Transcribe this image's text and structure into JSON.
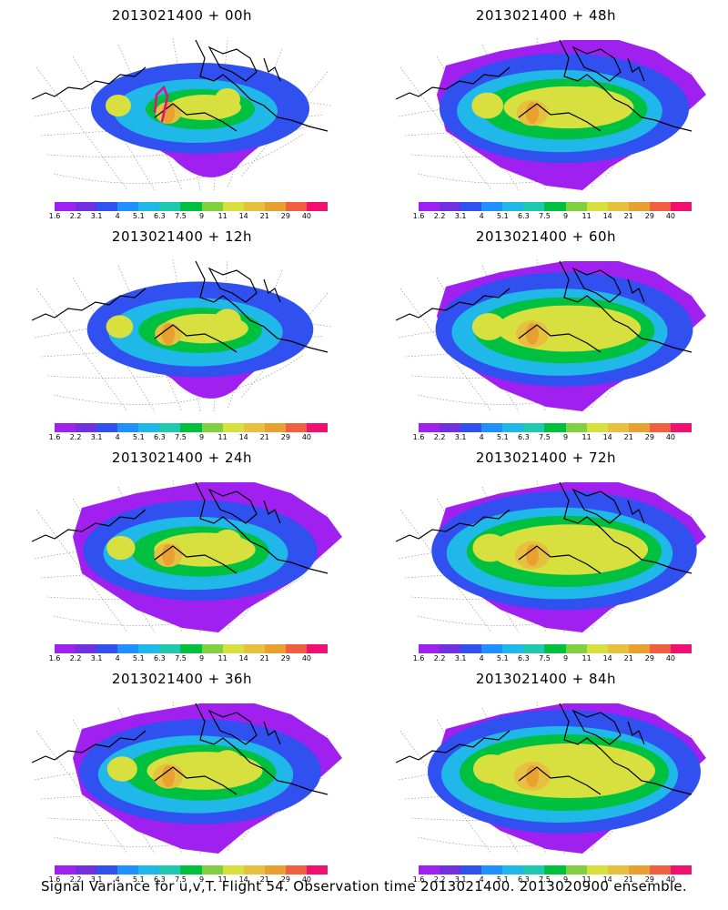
{
  "panels": [
    {
      "title": "2013021400 + 00h",
      "stage": 0
    },
    {
      "title": "2013021400 + 48h",
      "stage": 4
    },
    {
      "title": "2013021400 + 12h",
      "stage": 1
    },
    {
      "title": "2013021400 + 60h",
      "stage": 5
    },
    {
      "title": "2013021400 + 24h",
      "stage": 2
    },
    {
      "title": "2013021400 + 72h",
      "stage": 6
    },
    {
      "title": "2013021400 + 36h",
      "stage": 3
    },
    {
      "title": "2013021400 + 84h",
      "stage": 7
    }
  ],
  "colorbar": {
    "labels": [
      "1.6",
      "2.2",
      "3.1",
      "4",
      "5.1",
      "6.3",
      "7.5",
      "9",
      "11",
      "14",
      "21",
      "29",
      "40"
    ],
    "colors": [
      "#a020f0",
      "#7030e0",
      "#3050f0",
      "#1e90ff",
      "#20b8e8",
      "#20c8b0",
      "#00c040",
      "#80d040",
      "#d8e040",
      "#e8c040",
      "#e8a030",
      "#f06040",
      "#f0106f"
    ]
  },
  "footer": "Signal Variance for u,v,T. Flight 54. Observation time 2013021400. 2013020900 ensemble."
}
